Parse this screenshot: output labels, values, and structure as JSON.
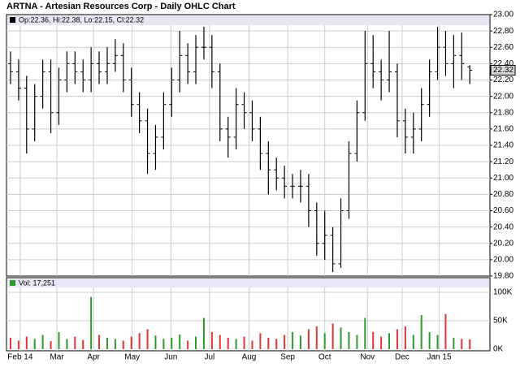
{
  "chart_data": [
    {
      "type": "ohlc",
      "title": "ARTNA - Artesian Resources Corp - Daily OHLC Chart",
      "legend_text": "Op:22.36, Hi:22.38, Lo:22.15, Cl:22.32",
      "categories": [
        null,
        null,
        null,
        null,
        null,
        null,
        null,
        null,
        null,
        null,
        null,
        null,
        null,
        null,
        null,
        null,
        null,
        null,
        null,
        null,
        null,
        null,
        null,
        null,
        null,
        null,
        null,
        null,
        null,
        null,
        null,
        null,
        null,
        null,
        null,
        null,
        null,
        null,
        null,
        null,
        null,
        null,
        null,
        null,
        null,
        null,
        null,
        null,
        null,
        null,
        null,
        null,
        null,
        null,
        null,
        null,
        null,
        null
      ],
      "open": [
        22.4,
        22.3,
        22.1,
        21.6,
        22.0,
        22.3,
        21.8,
        22.2,
        22.4,
        22.3,
        22.2,
        22.4,
        22.3,
        22.4,
        22.5,
        22.2,
        21.9,
        21.7,
        21.3,
        21.5,
        21.9,
        22.2,
        22.5,
        22.3,
        22.6,
        22.6,
        22.3,
        21.6,
        21.5,
        21.9,
        21.8,
        21.6,
        21.3,
        21.1,
        21.0,
        20.9,
        20.9,
        20.9,
        20.6,
        20.2,
        20.3,
        19.95,
        20.6,
        21.3,
        21.8,
        22.4,
        22.3,
        22.2,
        22.3,
        21.7,
        21.5,
        21.6,
        21.9,
        22.3,
        22.6,
        22.4,
        22.5,
        22.36
      ],
      "high": [
        22.55,
        22.45,
        22.25,
        22.15,
        22.45,
        22.45,
        22.35,
        22.55,
        22.55,
        22.45,
        22.6,
        22.55,
        22.6,
        22.7,
        22.65,
        22.35,
        22.05,
        21.85,
        21.65,
        22.05,
        22.35,
        22.8,
        22.65,
        22.75,
        22.85,
        22.75,
        22.4,
        21.75,
        22.1,
        22.05,
        21.95,
        21.75,
        21.45,
        21.25,
        21.15,
        21.05,
        21.1,
        21.05,
        20.7,
        20.6,
        20.4,
        20.75,
        21.45,
        21.95,
        22.8,
        22.75,
        22.45,
        22.8,
        22.4,
        21.85,
        21.8,
        22.1,
        22.45,
        22.85,
        22.8,
        22.75,
        22.78,
        22.38
      ],
      "low": [
        22.15,
        21.95,
        21.3,
        21.45,
        21.85,
        21.55,
        21.65,
        22.05,
        22.15,
        22.05,
        22.05,
        22.15,
        22.15,
        22.3,
        22.05,
        21.75,
        21.55,
        21.05,
        21.1,
        21.35,
        21.75,
        22.05,
        22.15,
        22.15,
        22.45,
        22.1,
        21.45,
        21.25,
        21.35,
        21.6,
        21.45,
        21.1,
        20.8,
        20.85,
        20.75,
        20.75,
        20.7,
        20.4,
        20.05,
        20.0,
        19.85,
        19.9,
        20.5,
        21.2,
        21.7,
        22.1,
        21.95,
        22.05,
        21.5,
        21.3,
        21.3,
        21.45,
        21.75,
        22.2,
        22.25,
        22.1,
        22.2,
        22.15
      ],
      "close": [
        22.3,
        22.1,
        21.6,
        22.0,
        22.3,
        21.8,
        22.2,
        22.4,
        22.3,
        22.2,
        22.4,
        22.3,
        22.4,
        22.5,
        22.2,
        21.9,
        21.7,
        21.3,
        21.5,
        21.9,
        22.2,
        22.5,
        22.3,
        22.6,
        22.6,
        22.3,
        21.6,
        21.5,
        21.9,
        21.8,
        21.6,
        21.3,
        21.1,
        21.0,
        20.9,
        20.9,
        20.9,
        20.6,
        20.2,
        20.3,
        19.95,
        20.6,
        21.3,
        21.8,
        22.4,
        22.3,
        22.2,
        22.3,
        21.7,
        21.5,
        21.6,
        21.9,
        22.3,
        22.6,
        22.4,
        22.5,
        22.4,
        22.32
      ],
      "color": "#000000",
      "last_price": {
        "value": 22.32,
        "label": "22.32"
      },
      "ylim": [
        19.8,
        23.0
      ],
      "yticks": [
        {
          "value": 19.8,
          "label": "19.80"
        },
        {
          "value": 20.0,
          "label": "20.00"
        },
        {
          "value": 20.2,
          "label": "20.20"
        },
        {
          "value": 20.4,
          "label": "20.40"
        },
        {
          "value": 20.6,
          "label": "20.60"
        },
        {
          "value": 20.8,
          "label": "20.80"
        },
        {
          "value": 21.0,
          "label": "21.00"
        },
        {
          "value": 21.2,
          "label": "21.20"
        },
        {
          "value": 21.4,
          "label": "21.40"
        },
        {
          "value": 21.6,
          "label": "21.60"
        },
        {
          "value": 21.8,
          "label": "21.80"
        },
        {
          "value": 22.0,
          "label": "22.00"
        },
        {
          "value": 22.2,
          "label": "22.20"
        },
        {
          "value": 22.4,
          "label": "22.40"
        },
        {
          "value": 22.6,
          "label": "22.60"
        },
        {
          "value": 22.8,
          "label": "22.80"
        },
        {
          "value": 23.0,
          "label": "23.00"
        }
      ],
      "grid": true
    },
    {
      "type": "bar",
      "legend_text": "Vol: 17,251",
      "categories": [
        null,
        null,
        null,
        null,
        null,
        null,
        null,
        null,
        null,
        null,
        null,
        null,
        null,
        null,
        null,
        null,
        null,
        null,
        null,
        null,
        null,
        null,
        null,
        null,
        null,
        null,
        null,
        null,
        null,
        null,
        null,
        null,
        null,
        null,
        null,
        null,
        null,
        null,
        null,
        null,
        null,
        null,
        null,
        null,
        null,
        null,
        null,
        null,
        null,
        null,
        null,
        null,
        null,
        null,
        null,
        null,
        null,
        null
      ],
      "values": [
        20000,
        15000,
        22000,
        18000,
        25000,
        14000,
        30000,
        18000,
        22000,
        16000,
        92000,
        25000,
        20000,
        18000,
        15000,
        22000,
        28000,
        35000,
        24000,
        18000,
        20000,
        26000,
        15000,
        22000,
        55000,
        30000,
        25000,
        20000,
        18000,
        22000,
        15000,
        28000,
        20000,
        18000,
        25000,
        30000,
        24000,
        35000,
        40000,
        28000,
        45000,
        38000,
        30000,
        25000,
        55000,
        30000,
        22000,
        28000,
        35000,
        40000,
        25000,
        60000,
        30000,
        25000,
        62000,
        20000,
        18000,
        17251
      ],
      "up_color": "#2e9a2e",
      "down_color": "#e03434",
      "xlim": [
        0,
        60
      ],
      "xticks": [
        {
          "value": 1.7,
          "label": "Feb 14"
        },
        {
          "value": 6.25,
          "label": "Mar"
        },
        {
          "value": 10.8,
          "label": "Apr"
        },
        {
          "value": 15.6,
          "label": "May"
        },
        {
          "value": 20.4,
          "label": "Jun"
        },
        {
          "value": 25.2,
          "label": "Jul"
        },
        {
          "value": 30.1,
          "label": "Aug"
        },
        {
          "value": 34.9,
          "label": "Sep"
        },
        {
          "value": 39.5,
          "label": "Oct"
        },
        {
          "value": 44.8,
          "label": "Nov"
        },
        {
          "value": 49.1,
          "label": "Dec"
        },
        {
          "value": 53.7,
          "label": "Jan 15"
        }
      ],
      "ylim": [
        0,
        110000
      ],
      "yticks": [
        {
          "value": 0,
          "label": "0K"
        },
        {
          "value": 50000,
          "label": "50K"
        },
        {
          "value": 100000,
          "label": "100K"
        }
      ],
      "grid": true
    }
  ]
}
